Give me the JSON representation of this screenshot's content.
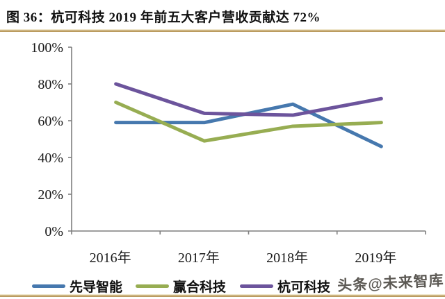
{
  "header": {
    "title": "图 36：杭可科技 2019 年前五大客户营收贡献达 72%"
  },
  "watermark": {
    "text": "头条@未来智库"
  },
  "colors": {
    "rule_gold": "#c2a266",
    "rule_gold_light": "#f0e8cf",
    "axis": "#7f7f7f",
    "tick_label": "#1a1a1a"
  },
  "chart_data": {
    "type": "line",
    "title": "杭可科技 2019 年前五大客户营收贡献达 72%",
    "categories": [
      "2016年",
      "2017年",
      "2018年",
      "2019年"
    ],
    "series": [
      {
        "name": "先导智能",
        "color": "#4678ae",
        "values": [
          59,
          59,
          69,
          46
        ]
      },
      {
        "name": "赢合科技",
        "color": "#97ad52",
        "values": [
          70,
          49,
          57,
          59
        ]
      },
      {
        "name": "杭可科技",
        "color": "#6c549c",
        "values": [
          80,
          64,
          63,
          72
        ]
      }
    ],
    "xlabel": "",
    "ylabel": "",
    "ylim": [
      0,
      100
    ],
    "ytick_step": 20,
    "ytick_labels": [
      "0%",
      "20%",
      "40%",
      "60%",
      "80%",
      "100%"
    ],
    "grid": false,
    "legend_position": "bottom"
  }
}
